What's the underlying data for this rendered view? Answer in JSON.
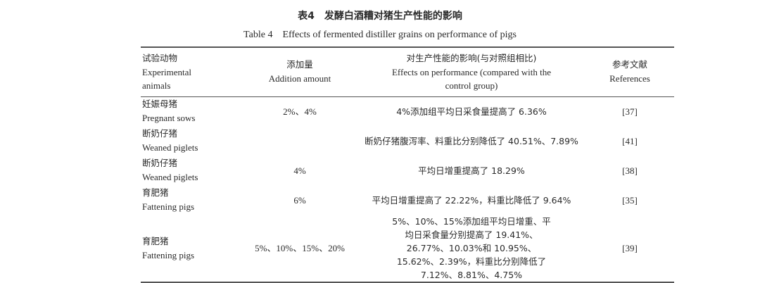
{
  "title_zh": "表4　发酵白酒糟对猪生产性能的影响",
  "title_en": "Table 4　Effects of fermented distiller grains on performance of pigs",
  "headers": [
    {
      "zh": "试验动物",
      "en": "Experimental animals"
    },
    {
      "zh": "添加量",
      "en": "Addition amount"
    },
    {
      "zh": "对生产性能的影响(与对照组相比)",
      "en": "Effects on performance (compared with the control group)"
    },
    {
      "zh": "参考文献",
      "en": "References"
    }
  ],
  "rows": [
    {
      "animal_zh": "妊娠母猪",
      "animal_en": "Pregnant sows",
      "amount": "2%、4%",
      "effect": "4%添加组平均日采食量提高了 6.36%",
      "ref": "[37]"
    },
    {
      "animal_zh": "断奶仔猪",
      "animal_en": "Weaned piglets",
      "amount": "",
      "effect": "断奶仔猪腹泻率、料重比分别降低了 40.51%、7.89%",
      "ref": "[41]"
    },
    {
      "animal_zh": "断奶仔猪",
      "animal_en": "Weaned piglets",
      "amount": "4%",
      "effect": "平均日增重提高了 18.29%",
      "ref": "[38]"
    },
    {
      "animal_zh": "育肥猪",
      "animal_en": "Fattening pigs",
      "amount": "6%",
      "effect": "平均日增重提高了 22.22%，料重比降低了 9.64%",
      "ref": "[35]"
    },
    {
      "animal_zh": "育肥猪",
      "animal_en": "Fattening pigs",
      "amount": "5%、10%、15%、20%",
      "effect": "5%、10%、15%添加组平均日增重、平均日采食量分别提高了 19.41%、26.77%、10.03%和 10.95%、15.62%、2.39%，料重比分别降低了 7.12%、8.81%、4.75%",
      "ref": "[39]"
    }
  ]
}
